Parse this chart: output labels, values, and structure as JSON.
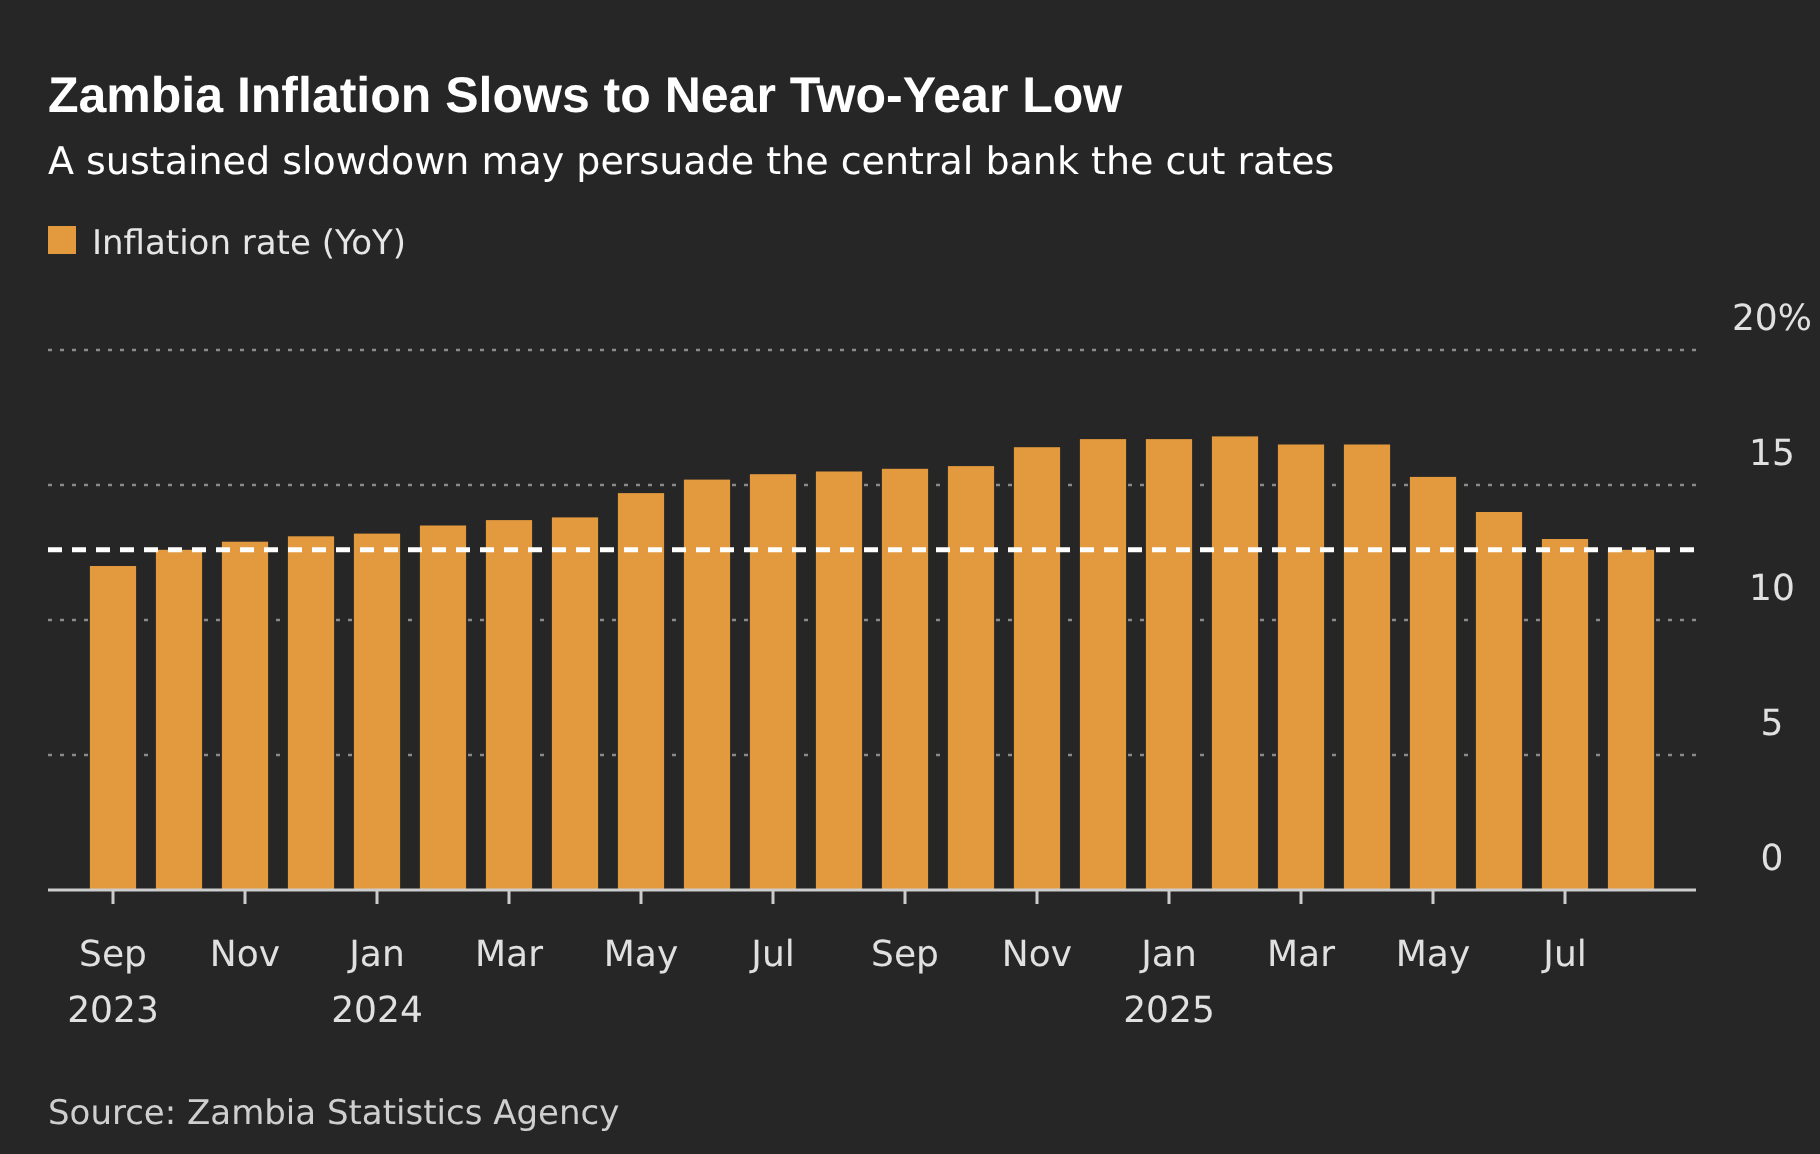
{
  "chart_data": {
    "type": "bar",
    "title": "Zambia Inflation Slows to Near Two-Year Low",
    "subtitle": "A sustained slowdown may persuade the central bank the cut rates",
    "categories": [
      "Sep\n2023",
      null,
      "Nov",
      null,
      "Jan\n2024",
      null,
      "Mar",
      null,
      "May",
      null,
      "Jul",
      null,
      "Sep",
      null,
      "Nov",
      null,
      "Jan\n2025",
      null,
      "Mar",
      null,
      "May",
      null,
      "Jul",
      null
    ],
    "series": [
      {
        "name": "Inflation rate (YoY)",
        "color": "#e39a3f",
        "values": [
          12.0,
          12.6,
          12.9,
          13.1,
          13.2,
          13.5,
          13.7,
          13.8,
          14.7,
          15.2,
          15.4,
          15.5,
          15.6,
          15.7,
          16.4,
          16.7,
          16.7,
          16.8,
          16.5,
          16.5,
          15.3,
          14.0,
          13.0,
          12.6
        ]
      }
    ],
    "ylim": [
      0,
      20
    ],
    "yticks": [
      0,
      5,
      10,
      15,
      {
        "value": 20,
        "label": "20%"
      }
    ],
    "grid": "y",
    "legend": "top left",
    "ref_lines": [
      {
        "axis": "y",
        "value": 12.6,
        "color": "#ffffff",
        "line_style": "dashed"
      }
    ],
    "annotations": [
      "Source: Zambia Statistics Agency"
    ]
  }
}
